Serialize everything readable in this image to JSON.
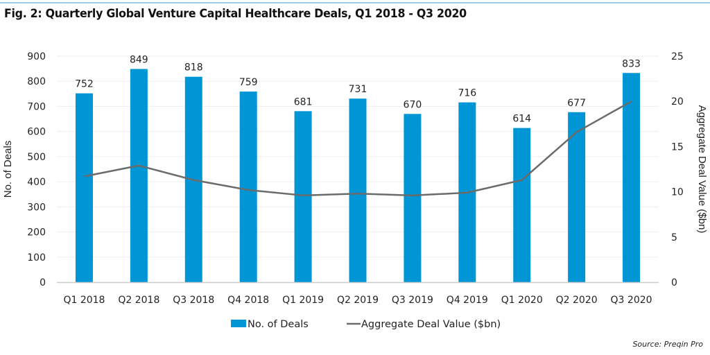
{
  "header": {
    "title": "Fig. 2: Quarterly Global Venture Capital Healthcare Deals, Q1 2018 - Q3 2020"
  },
  "source": "Source: Preqin Pro",
  "colors": {
    "bar": "#0096d6",
    "line": "#6b6b6b",
    "grid": "#eeeeee",
    "axis": "#cccccc",
    "top_rule": "#9ccbe8"
  },
  "chart_data": {
    "type": "bar",
    "title": "Fig. 2: Quarterly Global Venture Capital Healthcare Deals, Q1 2018 - Q3 2020",
    "categories": [
      "Q1 2018",
      "Q2 2018",
      "Q3 2018",
      "Q4 2018",
      "Q1 2019",
      "Q2 2019",
      "Q3 2019",
      "Q4 2019",
      "Q1 2020",
      "Q2 2020",
      "Q3 2020"
    ],
    "series": [
      {
        "name": "No. of Deals",
        "type": "bar",
        "axis": "left",
        "values": [
          752,
          849,
          818,
          759,
          681,
          731,
          670,
          716,
          614,
          677,
          833
        ],
        "data_labels": [
          "752",
          "849",
          "818",
          "759",
          "681",
          "731",
          "670",
          "716",
          "614",
          "677",
          "833"
        ]
      },
      {
        "name": "Aggregate Deal Value ($bn)",
        "type": "line",
        "axis": "right",
        "values": [
          11.7,
          12.9,
          11.3,
          10.2,
          9.6,
          9.8,
          9.6,
          9.9,
          11.3,
          16.6,
          20.0
        ]
      }
    ],
    "xlabel": "",
    "ylabel": "No. of Deals",
    "ylabel_right": "Aggregate Deal Value ($bn)",
    "ylim": [
      0,
      900
    ],
    "ylim_right": [
      0,
      25
    ],
    "yticks": [
      "0",
      "100",
      "200",
      "300",
      "400",
      "500",
      "600",
      "700",
      "800",
      "900"
    ],
    "yticks_right": [
      "0",
      "5",
      "10",
      "15",
      "20",
      "25"
    ],
    "grid": true,
    "legend": {
      "position": "bottom-center",
      "entries": [
        "No. of Deals",
        "Aggregate Deal Value ($bn)"
      ]
    }
  }
}
